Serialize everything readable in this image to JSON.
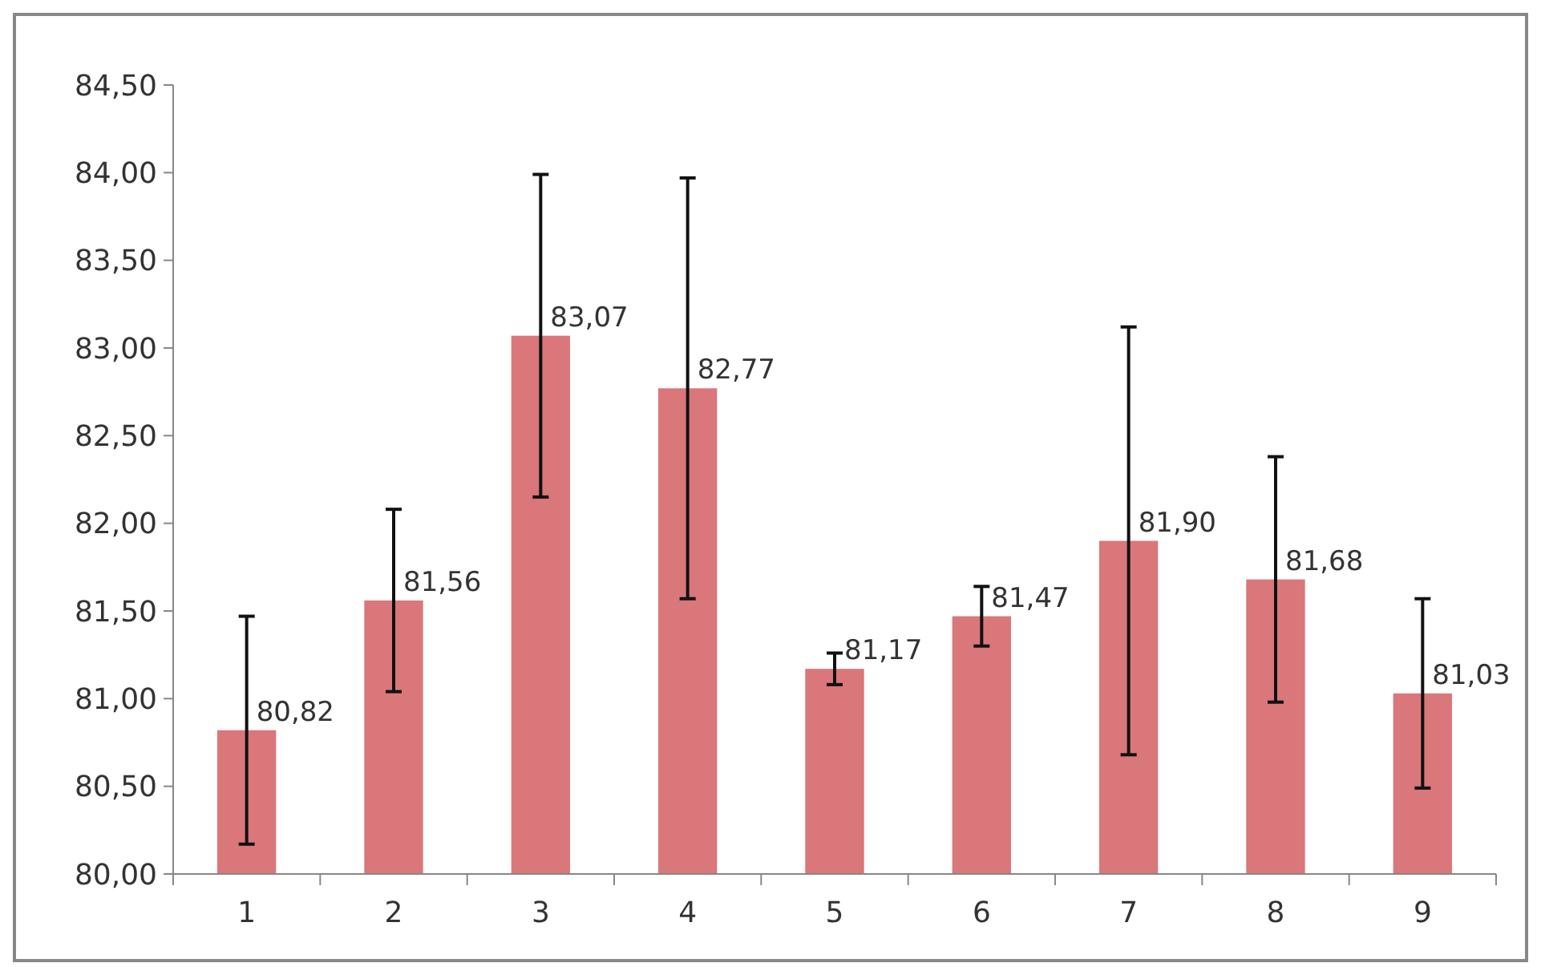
{
  "chart_data": {
    "type": "bar",
    "categories": [
      "1",
      "2",
      "3",
      "4",
      "5",
      "6",
      "7",
      "8",
      "9"
    ],
    "values": [
      80.82,
      81.56,
      83.07,
      82.77,
      81.17,
      81.47,
      81.9,
      81.68,
      81.03
    ],
    "errors": [
      0.65,
      0.52,
      0.92,
      1.2,
      0.09,
      0.17,
      1.22,
      0.7,
      0.54
    ],
    "value_labels": [
      "80,82",
      "81,56",
      "83,07",
      "82,77",
      "81,17",
      "81,47",
      "81,90",
      "81,68",
      "81,03"
    ],
    "color": "#d9777a",
    "ylim": [
      80,
      84.5
    ],
    "yticks": [
      {
        "value": 80,
        "label": "80,00"
      },
      {
        "value": 80.5,
        "label": "80,50"
      },
      {
        "value": 81,
        "label": "81,00"
      },
      {
        "value": 81.5,
        "label": "81,50"
      },
      {
        "value": 82,
        "label": "82,00"
      },
      {
        "value": 82.5,
        "label": "82,50"
      },
      {
        "value": 83,
        "label": "83,00"
      },
      {
        "value": 83.5,
        "label": "83,50"
      },
      {
        "value": 84,
        "label": "84,00"
      },
      {
        "value": 84.5,
        "label": "84,50"
      }
    ],
    "grid": false
  }
}
